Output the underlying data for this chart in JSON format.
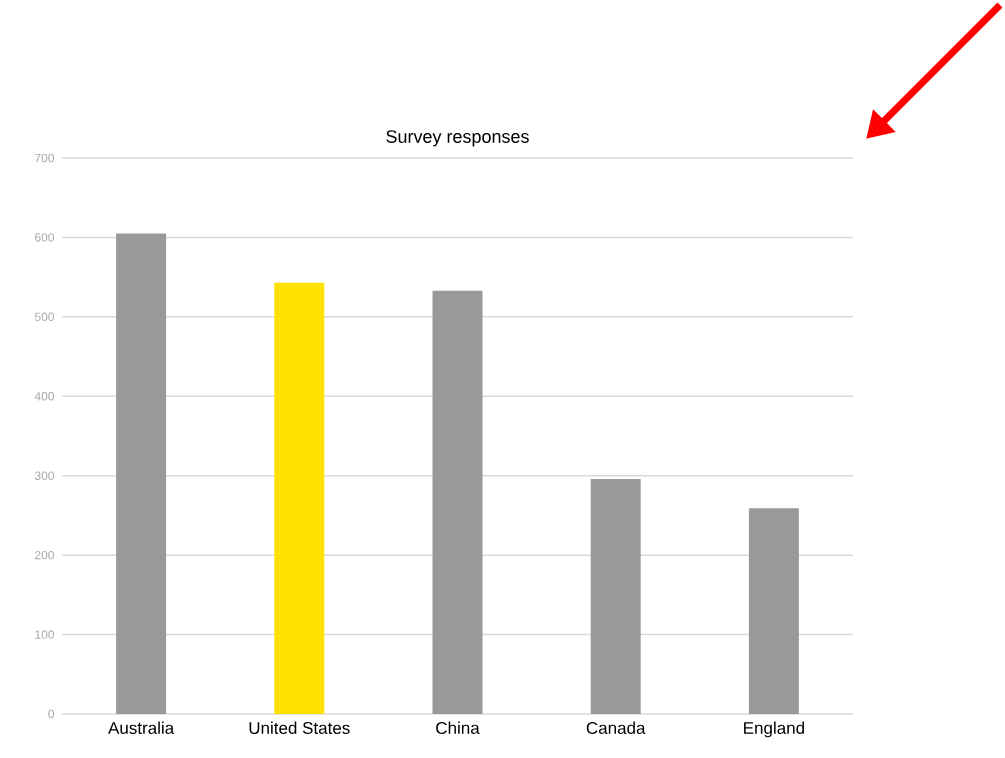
{
  "chart_data": {
    "type": "bar",
    "title": "Survey responses",
    "categories": [
      "Australia",
      "United States",
      "China",
      "Canada",
      "England"
    ],
    "values": [
      605,
      543,
      533,
      296,
      259
    ],
    "colors": [
      "#999999",
      "#ffe100",
      "#999999",
      "#999999",
      "#999999"
    ],
    "ylim": [
      0,
      700
    ],
    "yticks": [
      0,
      100,
      200,
      300,
      400,
      500,
      600,
      700
    ],
    "grid": "y"
  }
}
